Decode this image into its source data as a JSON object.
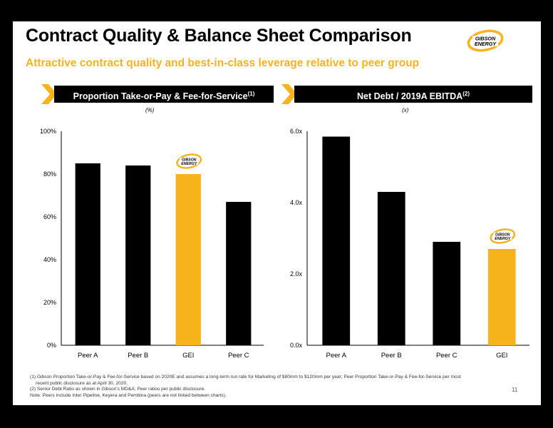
{
  "title": "Contract Quality & Balance Sheet Comparison",
  "subtitle": "Attractive contract quality and best-in-class leverage relative to peer group",
  "logo": {
    "line1": "GIBSON",
    "line2": "ENERGY",
    "color": "#F6B31B"
  },
  "accent_color": "#F6B31B",
  "bar_color": "#000000",
  "highlight_color": "#F6B31B",
  "panels": [
    {
      "header": "Proportion Take-or-Pay & Fee-for-Service",
      "footnote_ref": "(1)",
      "unit": "(%)"
    },
    {
      "header": "Net Debt / 2019A EBITDA",
      "footnote_ref": "(2)",
      "unit": "(x)"
    }
  ],
  "chart_data": [
    {
      "type": "bar",
      "categories": [
        "Peer A",
        "Peer B",
        "GEI",
        "Peer C"
      ],
      "values": [
        85,
        84,
        80,
        67
      ],
      "highlight_category": "GEI",
      "ylim": [
        0,
        100
      ],
      "yticks": [
        0,
        20,
        40,
        60,
        80,
        100
      ],
      "ytick_labels": [
        "0%",
        "20%",
        "40%",
        "60%",
        "80%",
        "100%"
      ],
      "grid": false
    },
    {
      "type": "bar",
      "categories": [
        "Peer A",
        "Peer B",
        "Peer C",
        "GEI"
      ],
      "values": [
        5.85,
        4.3,
        2.9,
        2.7
      ],
      "highlight_category": "GEI",
      "ylim": [
        0,
        6
      ],
      "yticks": [
        0,
        2,
        4,
        6
      ],
      "ytick_labels": [
        "0.0x",
        "2.0x",
        "4.0x",
        "6.0x"
      ],
      "grid": false
    }
  ],
  "footnotes": [
    "(1) Gibson Proportion Take-or-Pay & Fee-for-Service based on 2020E and assumes a long-term run rate for Marketing of $80mm to $120mm per year; Peer Proportion Take-or-Pay & Fee-for-Service per most",
    "recent public disclosure as at April 30, 2020.",
    "(2) Senior Debt Ratio as shown in Gibson's MD&A; Peer ratios per public disclosure.",
    "Note: Peers include Inter Pipeline, Keyera and Pembina (peers are not linked between charts)."
  ],
  "page_number": "11"
}
